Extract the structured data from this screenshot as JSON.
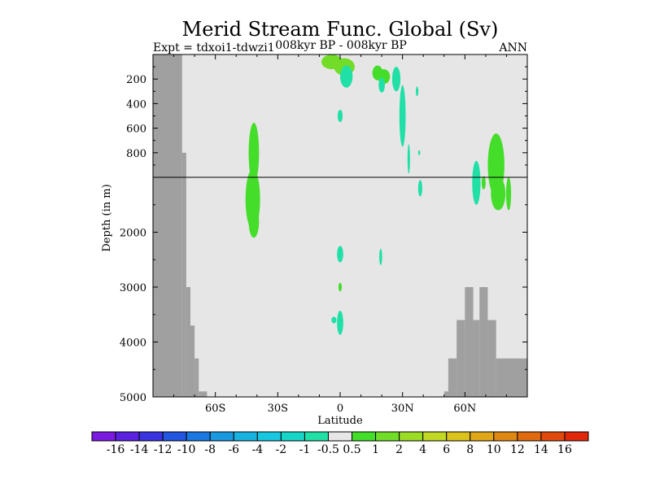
{
  "chart_data": {
    "type": "heatmap",
    "title": "Merid Stream Func. Global (Sv)",
    "subtitle_left": "Expt = tdxoi1-tdwzi1",
    "subtitle_center": "008kyr BP - 008kyr BP",
    "subtitle_right": "ANN",
    "xlabel": "Latitude",
    "ylabel": "Depth (in m)",
    "xlim": [
      -90,
      90
    ],
    "x_ticks": [
      -60,
      -30,
      0,
      30,
      60
    ],
    "x_tick_labels": [
      "60S",
      "30S",
      "0",
      "30N",
      "60N"
    ],
    "y_axis": "depth, two linear segments split at 1000 m (0-1000 m stretched on top)",
    "y_ticks": [
      200,
      400,
      600,
      800,
      2000,
      3000,
      4000,
      5000
    ],
    "y_tick_labels": [
      "200",
      "400",
      "600",
      "800",
      "2000",
      "3000",
      "4000",
      "5000"
    ],
    "ylim": [
      0,
      5000
    ],
    "reference_line_depth": 1000,
    "colorbar": {
      "labels": [
        "-16",
        "-14",
        "-12",
        "-10",
        "-8",
        "-6",
        "-4",
        "-2",
        "-1",
        "-0.5",
        "0.5",
        "1",
        "2",
        "4",
        "6",
        "8",
        "10",
        "12",
        "14",
        "16"
      ],
      "colors": [
        "#7b1ae0",
        "#5a22e0",
        "#3a33e0",
        "#2255e0",
        "#1a78e0",
        "#1a98e0",
        "#18b2e0",
        "#17c8e0",
        "#17d6c8",
        "#20e0a8",
        "#e6e6e6",
        "#44dd2a",
        "#72dd28",
        "#9adc26",
        "#c2d824",
        "#dcc21c",
        "#e0a818",
        "#e08814",
        "#e06a10",
        "#e04a0c",
        "#e0280a"
      ]
    },
    "background_color": "#e6e6e6",
    "land_color": "#a0a0a0",
    "land_mask": [
      {
        "lat": [
          -90,
          -76
        ],
        "depth": [
          0,
          5000
        ]
      },
      {
        "lat": [
          -76,
          -74
        ],
        "depth": [
          800,
          5000
        ]
      },
      {
        "lat": [
          -74,
          -72
        ],
        "depth": [
          3000,
          5000
        ]
      },
      {
        "lat": [
          -72,
          -70
        ],
        "depth": [
          3700,
          5000
        ]
      },
      {
        "lat": [
          -70,
          -68
        ],
        "depth": [
          4300,
          5000
        ]
      },
      {
        "lat": [
          -68,
          -64
        ],
        "depth": [
          4900,
          5000
        ]
      },
      {
        "lat": [
          50,
          52
        ],
        "depth": [
          4900,
          5000
        ]
      },
      {
        "lat": [
          52,
          56
        ],
        "depth": [
          4300,
          5000
        ]
      },
      {
        "lat": [
          56,
          60
        ],
        "depth": [
          3600,
          5000
        ]
      },
      {
        "lat": [
          60,
          64
        ],
        "depth": [
          3000,
          5000
        ]
      },
      {
        "lat": [
          64,
          67
        ],
        "depth": [
          3600,
          5000
        ]
      },
      {
        "lat": [
          67,
          71
        ],
        "depth": [
          3000,
          5000
        ]
      },
      {
        "lat": [
          71,
          75
        ],
        "depth": [
          3600,
          5000
        ]
      },
      {
        "lat": [
          75,
          90
        ],
        "depth": [
          4300,
          5000
        ]
      }
    ],
    "anomaly_patches": [
      {
        "lat": -41.5,
        "depth": 800,
        "dlat": 2.5,
        "ddepth": 300,
        "value": 0.75
      },
      {
        "lat": -42,
        "depth": 1400,
        "dlat": 3.5,
        "ddepth": 550,
        "value": 0.75
      },
      {
        "lat": -41.5,
        "depth": 1800,
        "dlat": 2.5,
        "ddepth": 300,
        "value": 0.75
      },
      {
        "lat": 2,
        "depth": 100,
        "dlat": 5,
        "ddepth": 70,
        "value": 1.5
      },
      {
        "lat": -4,
        "depth": 60,
        "dlat": 5,
        "ddepth": 60,
        "value": 1.5
      },
      {
        "lat": 3,
        "depth": 180,
        "dlat": 3,
        "ddepth": 90,
        "value": -0.75
      },
      {
        "lat": 0,
        "depth": 500,
        "dlat": 1.2,
        "ddepth": 50,
        "value": -0.75
      },
      {
        "lat": 18,
        "depth": 150,
        "dlat": 2.5,
        "ddepth": 60,
        "value": 0.75
      },
      {
        "lat": 21,
        "depth": 180,
        "dlat": 3,
        "ddepth": 60,
        "value": 0.75
      },
      {
        "lat": 20,
        "depth": 250,
        "dlat": 1.5,
        "ddepth": 60,
        "value": -0.75
      },
      {
        "lat": 27,
        "depth": 200,
        "dlat": 2,
        "ddepth": 100,
        "value": -0.75
      },
      {
        "lat": 30,
        "depth": 500,
        "dlat": 1.5,
        "ddepth": 250,
        "value": -0.75
      },
      {
        "lat": 33,
        "depth": 850,
        "dlat": 0.6,
        "ddepth": 120,
        "value": -0.75
      },
      {
        "lat": 37,
        "depth": 300,
        "dlat": 0.6,
        "ddepth": 40,
        "value": -0.75
      },
      {
        "lat": 38,
        "depth": 800,
        "dlat": 0.5,
        "ddepth": 20,
        "value": -0.75
      },
      {
        "lat": 38.5,
        "depth": 1200,
        "dlat": 1,
        "ddepth": 150,
        "value": -0.75
      },
      {
        "lat": 65.5,
        "depth": 1100,
        "dlat": 2,
        "ddepth": 400,
        "value": -0.75
      },
      {
        "lat": 75,
        "depth": 900,
        "dlat": 4,
        "ddepth": 450,
        "value": 0.75
      },
      {
        "lat": 76,
        "depth": 1300,
        "dlat": 3.5,
        "ddepth": 300,
        "value": 0.75
      },
      {
        "lat": 81,
        "depth": 1300,
        "dlat": 1.2,
        "ddepth": 300,
        "value": 0.75
      },
      {
        "lat": 69,
        "depth": 1100,
        "dlat": 1,
        "ddepth": 120,
        "value": 0.75
      },
      {
        "lat": 0,
        "depth": 2400,
        "dlat": 1.5,
        "ddepth": 150,
        "value": -0.75
      },
      {
        "lat": 19.5,
        "depth": 2450,
        "dlat": 0.7,
        "ddepth": 150,
        "value": -0.75
      },
      {
        "lat": 0,
        "depth": 3000,
        "dlat": 0.8,
        "ddepth": 80,
        "value": 0.75
      },
      {
        "lat": 0,
        "depth": 3650,
        "dlat": 1.5,
        "ddepth": 220,
        "value": -0.75
      },
      {
        "lat": -3,
        "depth": 3600,
        "dlat": 1.2,
        "ddepth": 60,
        "value": -0.75
      }
    ]
  }
}
